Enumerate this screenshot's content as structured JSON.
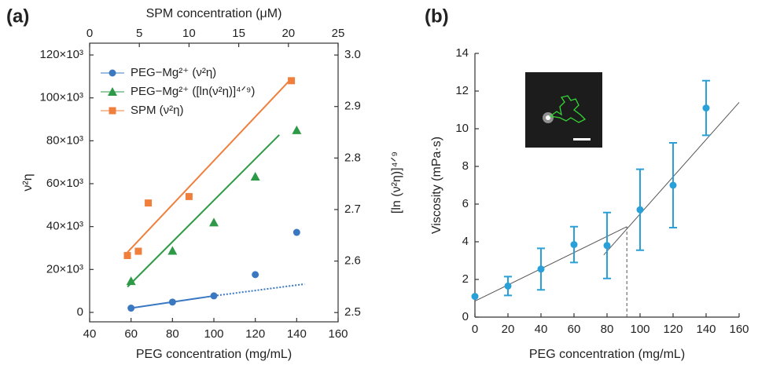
{
  "chart_data": [
    {
      "type": "scatter",
      "panel_label": "(a)",
      "xlabel": "PEG concentration (mg/mL)",
      "x2label": "SPM concentration (μM)",
      "ylabel": "ν²η",
      "y2label": "[ln (ν²η)]⁴ᐟ⁹",
      "xlim": [
        40,
        160
      ],
      "xticks": [
        40,
        60,
        80,
        100,
        120,
        140,
        160
      ],
      "x2lim": [
        0,
        25
      ],
      "x2ticks": [
        0,
        5,
        10,
        15,
        20,
        25
      ],
      "ylim": [
        -4400,
        125500
      ],
      "yticks": [
        0,
        {
          "value": 20000,
          "label": "20×10³"
        },
        {
          "value": 40000,
          "label": "40×10³"
        },
        {
          "value": 60000,
          "label": "60×10³"
        },
        {
          "value": 80000,
          "label": "80×10³"
        },
        {
          "value": 100000,
          "label": "100×10³"
        },
        {
          "value": 120000,
          "label": "120×10³"
        }
      ],
      "y2lim": [
        2.482,
        3.023
      ],
      "y2ticks": [
        2.5,
        2.6,
        2.7,
        2.8,
        2.9,
        {
          "value": 3,
          "label": "3.0"
        }
      ],
      "legend": "upper left",
      "series": [
        {
          "name": "PEG−Mg²⁺ (ν²η)",
          "color": "#3a78c2",
          "marker": "circle",
          "x": [
            60,
            80,
            100,
            120,
            140
          ],
          "values": [
            2000,
            4800,
            7700,
            17600,
            37300
          ],
          "fit": [
            {
              "x": [
                60,
                100
              ],
              "values": [
                2000,
                7700
              ],
              "dashed": false
            },
            {
              "x": [
                100,
                143.8
              ],
              "values": [
                7700,
                13200
              ],
              "dashed": true
            }
          ]
        },
        {
          "name": "PEG−Mg²⁺ ([ln(ν²η)]⁴ᐟ⁹)",
          "color": "#2e9a47",
          "marker": "triangle",
          "axis": "y2",
          "x": [
            60,
            80,
            100,
            120,
            140
          ],
          "values": [
            2.561,
            2.62,
            2.675,
            2.764,
            2.854
          ],
          "fit": [
            {
              "x": [
                58.3,
                131.6
              ],
              "values": [
                2.55,
                2.845
              ],
              "dashed": false
            }
          ]
        },
        {
          "name": "SPM (ν²η)",
          "color": "#f07f3c",
          "marker": "square",
          "xaxis": "x2",
          "x": [
            3.8,
            4.9,
            5.9,
            10.0,
            20.3
          ],
          "values": [
            26500,
            28500,
            51000,
            54000,
            108000
          ],
          "fit": [
            {
              "x": [
                3.8,
                20.3
              ],
              "values": [
                28000,
                109000
              ],
              "dashed": false
            }
          ]
        }
      ]
    },
    {
      "type": "scatter",
      "panel_label": "(b)",
      "xlabel": "PEG concentration (mg/mL)",
      "ylabel": "Viscosity (mPa·s)",
      "xlim": [
        0,
        160
      ],
      "xticks": [
        0,
        20,
        40,
        60,
        80,
        100,
        120,
        140,
        160
      ],
      "ylim": [
        0,
        14
      ],
      "yticks": [
        0,
        2,
        4,
        6,
        8,
        10,
        12,
        14
      ],
      "series": [
        {
          "color": "#2aa0d8",
          "marker": "circle",
          "x": [
            0,
            20,
            40,
            60,
            80,
            100,
            120,
            140
          ],
          "values": [
            1.1,
            1.65,
            2.55,
            3.85,
            3.8,
            5.7,
            7.0,
            11.1
          ],
          "errors": [
            null,
            0.5,
            1.1,
            0.95,
            1.75,
            2.15,
            2.25,
            1.45
          ],
          "fit": [
            {
              "x": [
                0,
                92
              ],
              "values": [
                0.85,
                4.8
              ],
              "dashed": false
            },
            {
              "x": [
                78,
                160
              ],
              "values": [
                3.3,
                11.4
              ],
              "dashed": false
            },
            {
              "x": [
                92,
                92
              ],
              "values": [
                0,
                4.8
              ],
              "dashed": true
            }
          ]
        }
      ]
    }
  ]
}
